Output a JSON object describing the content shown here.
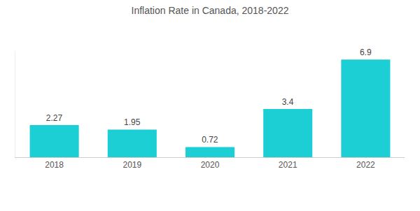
{
  "chart_data": {
    "type": "bar",
    "title": "Inflation Rate in Canada, 2018-2022",
    "categories": [
      "2018",
      "2019",
      "2020",
      "2021",
      "2022"
    ],
    "values": [
      2.27,
      1.95,
      0.72,
      3.4,
      6.9
    ],
    "color": "#1bcfd4",
    "ylim": [
      0,
      7.5
    ],
    "yticks": [],
    "grid": false,
    "data_labels": true,
    "tick_labels": "x"
  }
}
